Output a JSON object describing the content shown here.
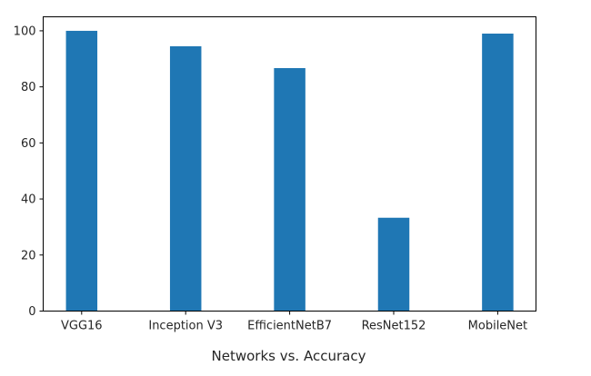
{
  "chart_data": {
    "type": "bar",
    "title": "",
    "xlabel": "Networks vs. Accuracy",
    "ylabel": "",
    "categories": [
      "VGG16",
      "Inception V3",
      "EfficientNetB7",
      "ResNet152",
      "MobileNet"
    ],
    "values": [
      100,
      94.5,
      86.7,
      33.3,
      99
    ],
    "ylim": [
      0,
      105
    ],
    "yticks": [
      0,
      20,
      40,
      60,
      80,
      100
    ],
    "bar_color": "#1f77b4",
    "grid": false,
    "legend": "none"
  }
}
